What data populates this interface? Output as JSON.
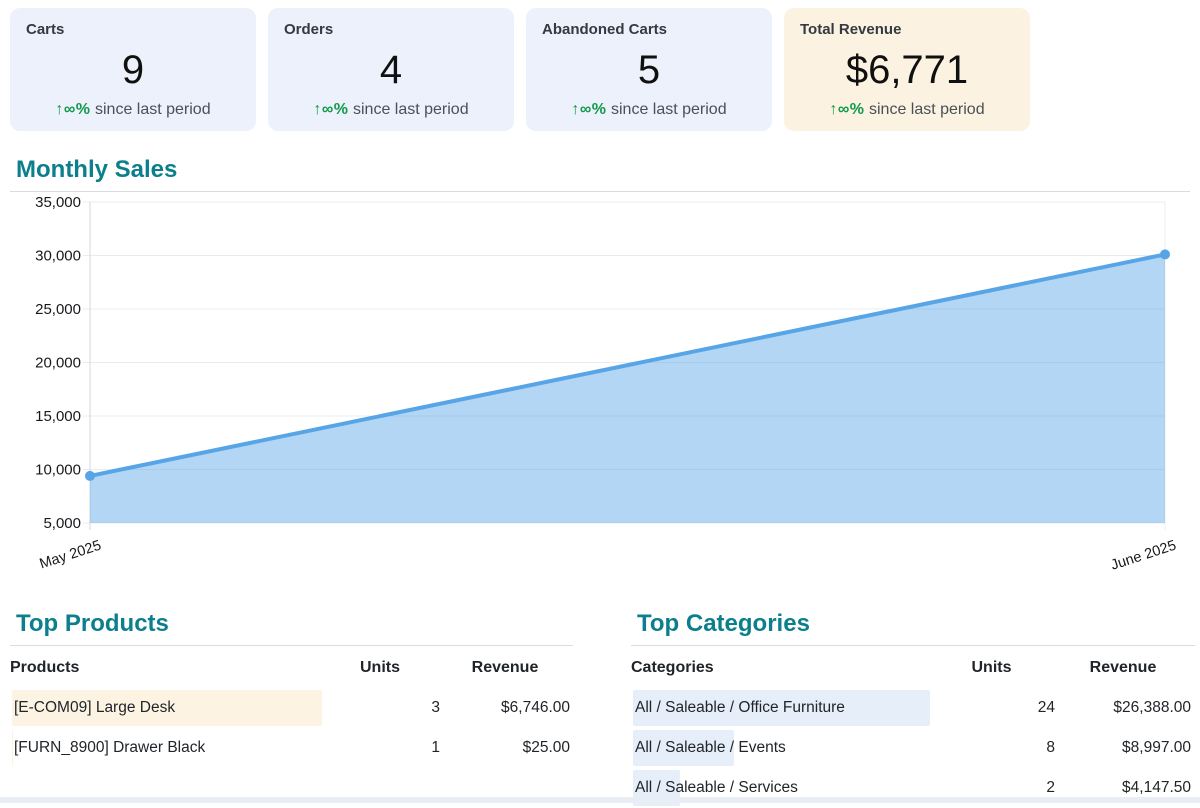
{
  "colors": {
    "teal": "#0c7f8d",
    "card_blue": "#ecf1fb",
    "card_cream": "#fbf2e2",
    "green": "#109a4a",
    "text_gray": "#495057",
    "rule": "#d9dde3",
    "bar_cream": "#fcf3e3",
    "bar_blue": "#e6eefa",
    "bottom_strip": "#e9eef5",
    "grid": "#e9ecef",
    "axis": "#d3d8de",
    "line_blue": "#57a5e6",
    "fill_blue": "rgba(87,165,230,0.45)"
  },
  "kpi_cards": [
    {
      "title": "Carts",
      "value": "9",
      "trend": "↑∞%",
      "trend_text": "since last period"
    },
    {
      "title": "Orders",
      "value": "4",
      "trend": "↑∞%",
      "trend_text": "since last period"
    },
    {
      "title": "Abandoned Carts",
      "value": "5",
      "trend": "↑∞%",
      "trend_text": "since last period"
    },
    {
      "title": "Total Revenue",
      "value": "$6,771",
      "trend": "↑∞%",
      "trend_text": "since last period"
    }
  ],
  "chart": {
    "title": "Monthly Sales"
  },
  "chart_data": {
    "type": "area",
    "title": "Monthly Sales",
    "x": [
      "May 2025",
      "June 2025"
    ],
    "series": [
      {
        "name": "Monthly Sales",
        "values": [
          9400,
          30100
        ]
      }
    ],
    "ylim": [
      5000,
      35000
    ],
    "yticks": [
      5000,
      10000,
      15000,
      20000,
      25000,
      30000,
      35000
    ],
    "grid": true,
    "legend": "none",
    "xlabel": "",
    "ylabel": ""
  },
  "top_products": {
    "title": "Top Products",
    "columns": [
      "Products",
      "Units",
      "Revenue"
    ],
    "rows": [
      {
        "name": "[E-COM09] Large Desk",
        "units": "3",
        "revenue": "$6,746.00",
        "bar_width": "100%"
      },
      {
        "name": "[FURN_8900] Drawer Black",
        "units": "1",
        "revenue": "$25.00",
        "bar_width": "0.4%"
      }
    ]
  },
  "top_categories": {
    "title": "Top Categories",
    "columns": [
      "Categories",
      "Units",
      "Revenue"
    ],
    "rows": [
      {
        "name": "All / Saleable / Office Furniture",
        "units": "24",
        "revenue": "$26,388.00",
        "bar_width": "100%"
      },
      {
        "name": "All / Saleable / Events",
        "units": "8",
        "revenue": "$8,997.00",
        "bar_width": "34.1%"
      },
      {
        "name": "All / Saleable / Services",
        "units": "2",
        "revenue": "$4,147.50",
        "bar_width": "15.7%"
      }
    ]
  }
}
